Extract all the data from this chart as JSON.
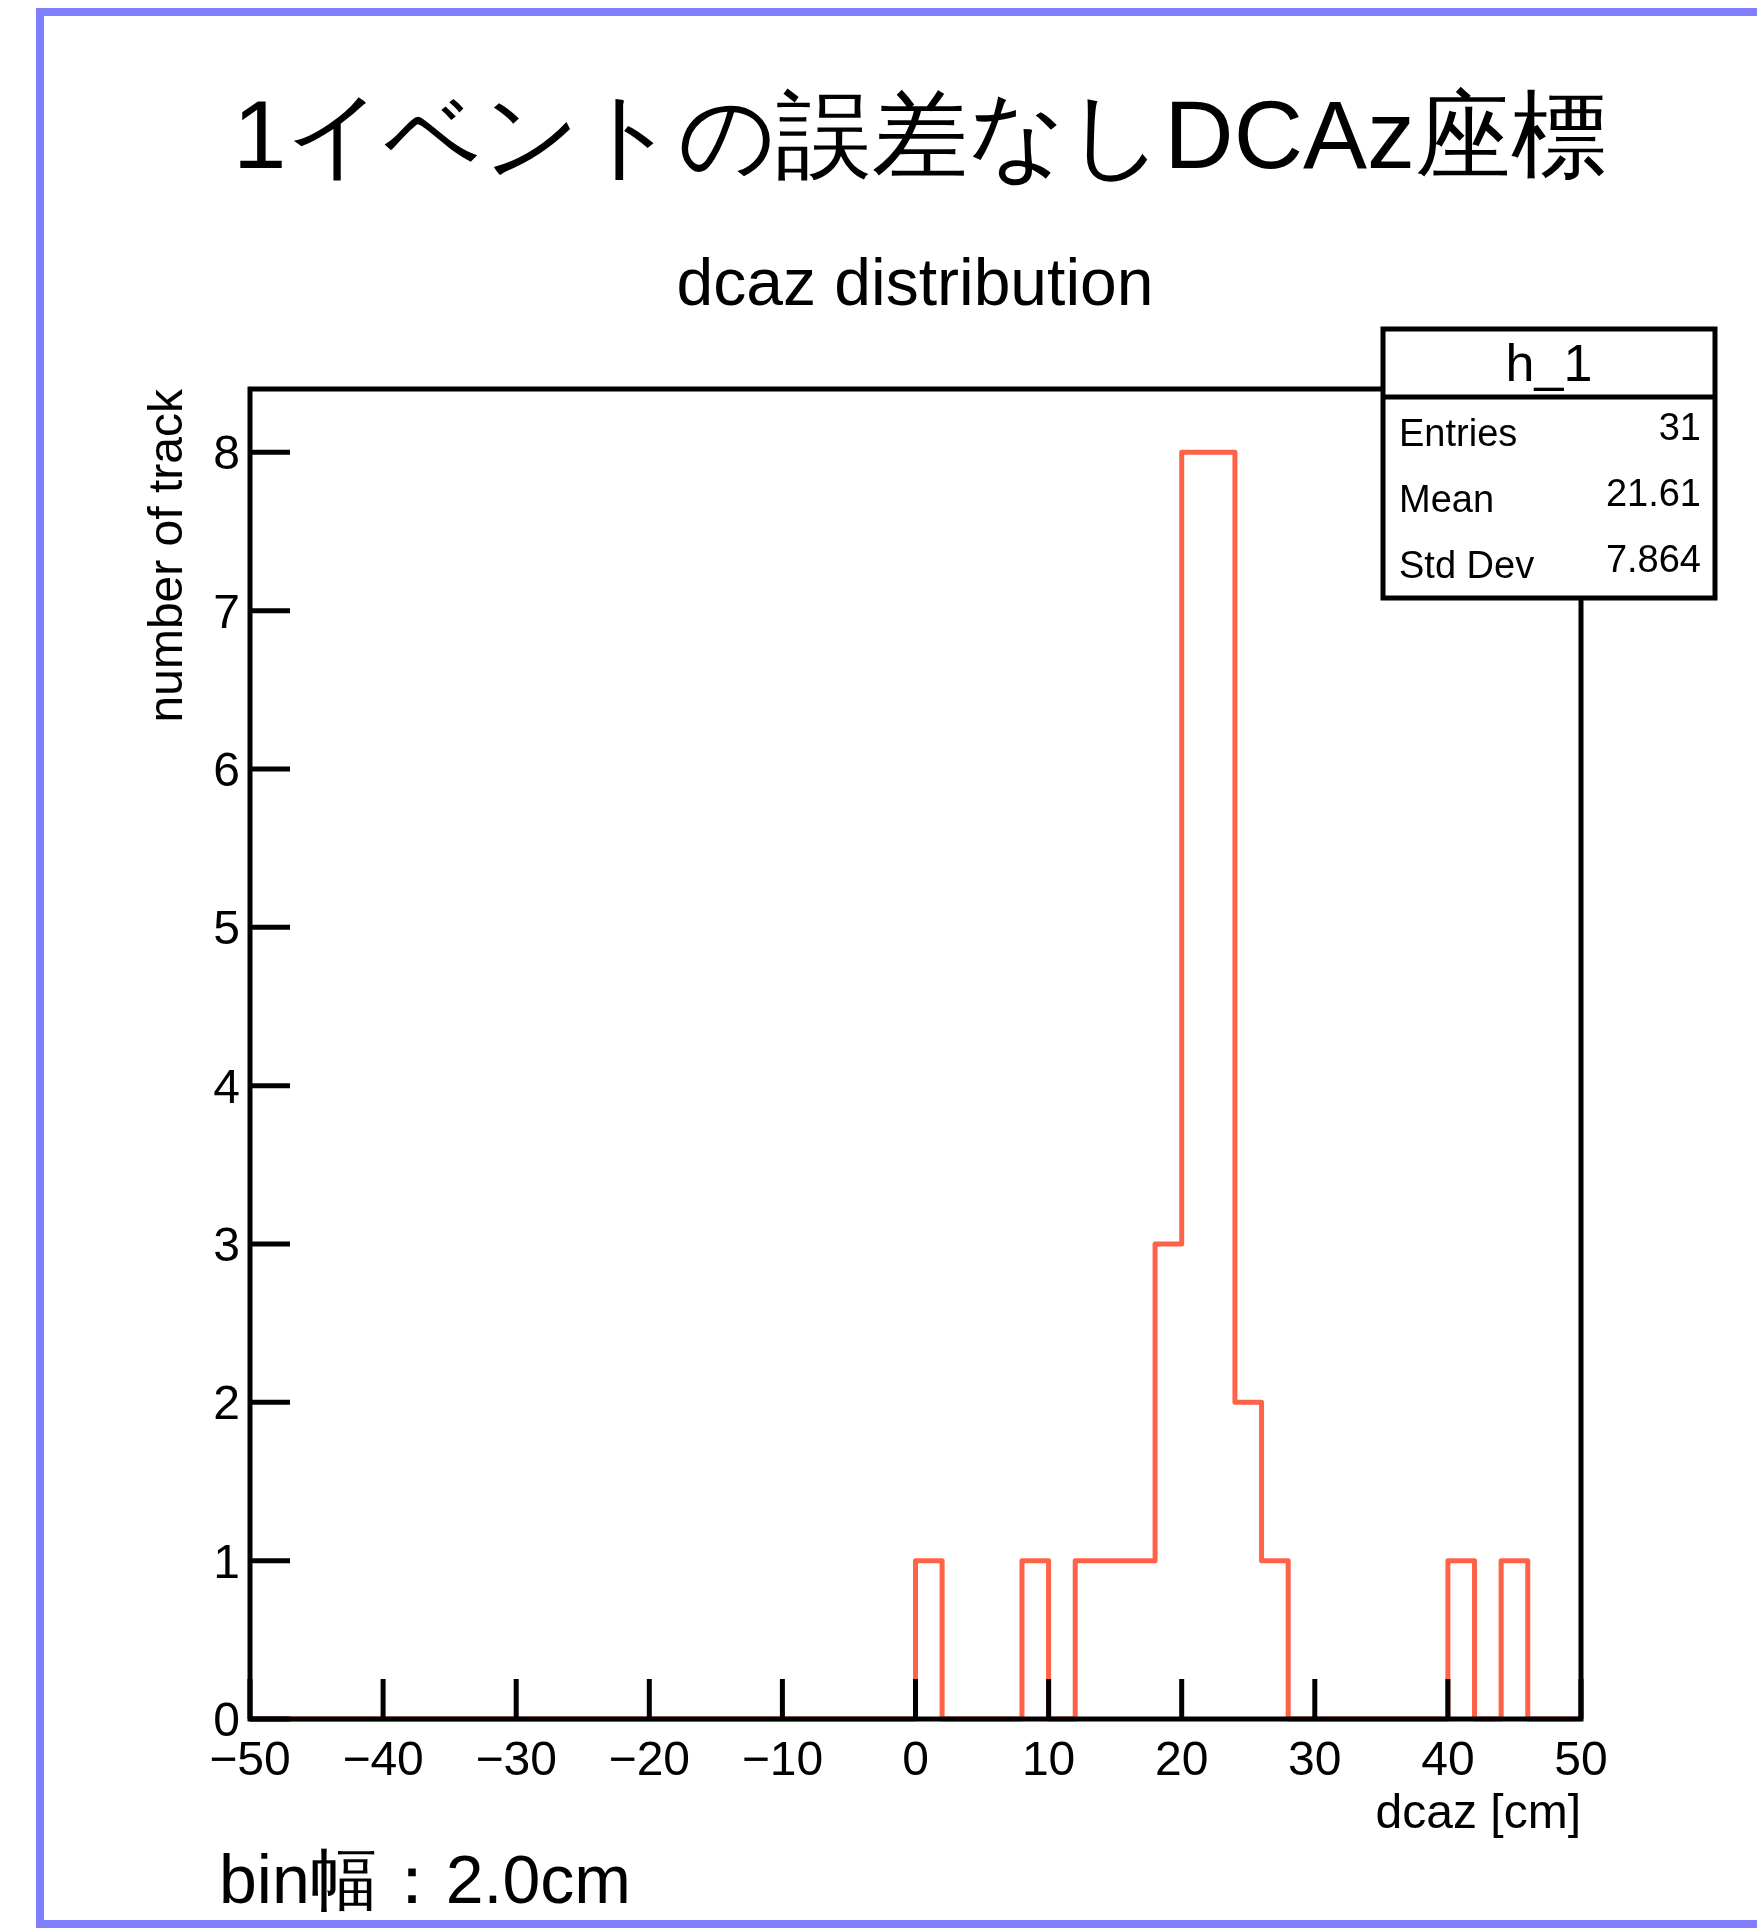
{
  "chart_data": {
    "type": "histogram",
    "title": "1イベントの誤差なしDCAz座標",
    "subtitle": "dcaz distribution",
    "xlabel": "dcaz [cm]",
    "ylabel": "number of track",
    "bins": [
      -50,
      -48,
      -46,
      -44,
      -42,
      -40,
      -38,
      -36,
      -34,
      -32,
      -30,
      -28,
      -26,
      -24,
      -22,
      -20,
      -18,
      -16,
      -14,
      -12,
      -10,
      -8,
      -6,
      -4,
      -2,
      0,
      2,
      4,
      6,
      8,
      10,
      12,
      14,
      16,
      18,
      20,
      22,
      24,
      26,
      28,
      30,
      32,
      34,
      36,
      38,
      40,
      42,
      44,
      46,
      48,
      50
    ],
    "values": [
      0,
      0,
      0,
      0,
      0,
      0,
      0,
      0,
      0,
      0,
      0,
      0,
      0,
      0,
      0,
      0,
      0,
      0,
      0,
      0,
      0,
      0,
      0,
      0,
      0,
      1,
      0,
      0,
      0,
      1,
      0,
      1,
      1,
      1,
      3,
      8,
      8,
      2,
      1,
      0,
      0,
      0,
      0,
      0,
      0,
      1,
      0,
      1,
      0,
      0
    ],
    "color": "#ff6347",
    "xlim": [
      -50,
      50
    ],
    "ylim": [
      0,
      8.4
    ],
    "xticks": [
      {
        "value": -50,
        "label": "−50"
      },
      {
        "value": -40,
        "label": "−40"
      },
      {
        "value": -30,
        "label": "−30"
      },
      {
        "value": -20,
        "label": "−20"
      },
      {
        "value": -10,
        "label": "−10"
      },
      0,
      10,
      20,
      30,
      40,
      50
    ],
    "yticks": [
      0,
      1,
      2,
      3,
      4,
      5,
      6,
      7,
      8
    ],
    "annotations": [
      "h_1",
      "Entries",
      "31",
      "Mean",
      "21.61",
      "Std Dev",
      "7.864",
      "bin幅：2.0cm"
    ]
  }
}
